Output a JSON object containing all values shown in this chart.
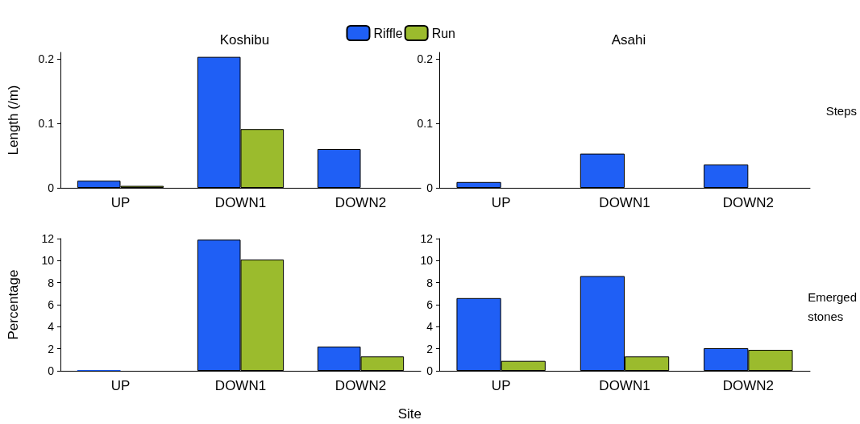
{
  "chart_data": [
    {
      "type": "bar",
      "title": "Koshibu",
      "ylabel": "Length (/m)",
      "categories": [
        "UP",
        "DOWN1",
        "DOWN2"
      ],
      "legend": "top",
      "ylim": [
        0,
        0.21
      ],
      "yticks": [
        0,
        0.1,
        0.2
      ],
      "grid": false,
      "series": [
        {
          "name": "Riffle",
          "color": "#1f5ff5",
          "values": [
            0.011,
            0.203,
            0.06
          ]
        },
        {
          "name": "Run",
          "color": "#9bbb2d",
          "values": [
            0.003,
            0.091,
            0
          ]
        }
      ]
    },
    {
      "type": "bar",
      "title": "Asahi",
      "categories": [
        "UP",
        "DOWN1",
        "DOWN2"
      ],
      "ylim": [
        0,
        0.21
      ],
      "yticks": [
        0,
        0.1,
        0.2
      ],
      "grid": false,
      "annotations": [
        "Steps"
      ],
      "series": [
        {
          "color": "#1f5ff5",
          "values": [
            0.009,
            0.053,
            0.036
          ]
        },
        {
          "color": "#9bbb2d",
          "values": [
            0,
            0,
            0
          ]
        }
      ]
    },
    {
      "type": "bar",
      "ylabel": "Percentage",
      "xlabel": "Site",
      "categories": [
        "UP",
        "DOWN1",
        "DOWN2"
      ],
      "ylim": [
        0,
        12
      ],
      "yticks": [
        0,
        2,
        4,
        6,
        8,
        10,
        12
      ],
      "grid": false,
      "series": [
        {
          "color": "#1f5ff5",
          "values": [
            0.07,
            11.9,
            2.2
          ]
        },
        {
          "color": "#9bbb2d",
          "values": [
            0,
            10.1,
            1.3
          ]
        }
      ]
    },
    {
      "type": "bar",
      "categories": [
        "UP",
        "DOWN1",
        "DOWN2"
      ],
      "ylim": [
        0,
        12
      ],
      "yticks": [
        0,
        2,
        4,
        6,
        8,
        10,
        12
      ],
      "grid": false,
      "annotations": [
        "Emerged stones"
      ],
      "series": [
        {
          "color": "#1f5ff5",
          "values": [
            6.6,
            8.6,
            2.05
          ]
        },
        {
          "color": "#9bbb2d",
          "values": [
            0.9,
            1.3,
            1.9
          ]
        }
      ]
    }
  ]
}
